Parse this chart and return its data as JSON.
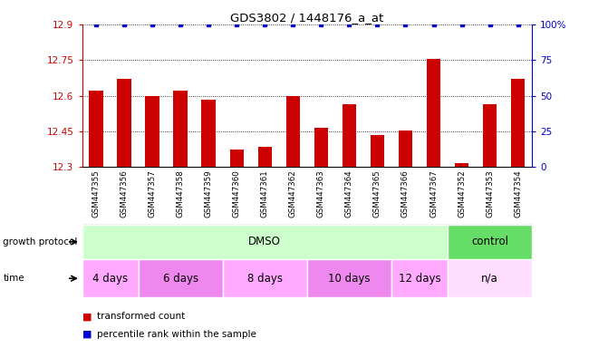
{
  "title": "GDS3802 / 1448176_a_at",
  "samples": [
    "GSM447355",
    "GSM447356",
    "GSM447357",
    "GSM447358",
    "GSM447359",
    "GSM447360",
    "GSM447361",
    "GSM447362",
    "GSM447363",
    "GSM447364",
    "GSM447365",
    "GSM447366",
    "GSM447367",
    "GSM447352",
    "GSM447353",
    "GSM447354"
  ],
  "bar_values": [
    12.62,
    12.67,
    12.6,
    12.62,
    12.585,
    12.375,
    12.385,
    12.6,
    12.465,
    12.565,
    12.435,
    12.455,
    12.755,
    12.315,
    12.565,
    12.67
  ],
  "percentile_values": [
    100,
    100,
    100,
    100,
    100,
    100,
    100,
    100,
    100,
    100,
    100,
    100,
    100,
    100,
    100,
    100
  ],
  "ylim_left": [
    12.3,
    12.9
  ],
  "ylim_right": [
    0,
    100
  ],
  "yticks_left": [
    12.3,
    12.45,
    12.6,
    12.75,
    12.9
  ],
  "yticks_right": [
    0,
    25,
    50,
    75,
    100
  ],
  "ytick_labels_left": [
    "12.3",
    "12.45",
    "12.6",
    "12.75",
    "12.9"
  ],
  "ytick_labels_right": [
    "0",
    "25",
    "50",
    "75",
    "100%"
  ],
  "bar_color": "#cc0000",
  "dot_color": "#0000cc",
  "protocol_groups": [
    {
      "label": "DMSO",
      "start": 0,
      "end": 13,
      "color": "#ccffcc"
    },
    {
      "label": "control",
      "start": 13,
      "end": 16,
      "color": "#66dd66"
    }
  ],
  "time_groups": [
    {
      "label": "4 days",
      "start": 0,
      "end": 2,
      "color": "#ffaaff"
    },
    {
      "label": "6 days",
      "start": 2,
      "end": 5,
      "color": "#ee88ee"
    },
    {
      "label": "8 days",
      "start": 5,
      "end": 8,
      "color": "#ffaaff"
    },
    {
      "label": "10 days",
      "start": 8,
      "end": 11,
      "color": "#ee88ee"
    },
    {
      "label": "12 days",
      "start": 11,
      "end": 13,
      "color": "#ffaaff"
    },
    {
      "label": "n/a",
      "start": 13,
      "end": 16,
      "color": "#ffddff"
    }
  ],
  "legend_bar_color": "#cc0000",
  "legend_dot_color": "#0000cc",
  "legend_bar_label": "transformed count",
  "legend_dot_label": "percentile rank within the sample",
  "background_color": "#ffffff",
  "sample_bg_color": "#cccccc",
  "bar_width": 0.5
}
